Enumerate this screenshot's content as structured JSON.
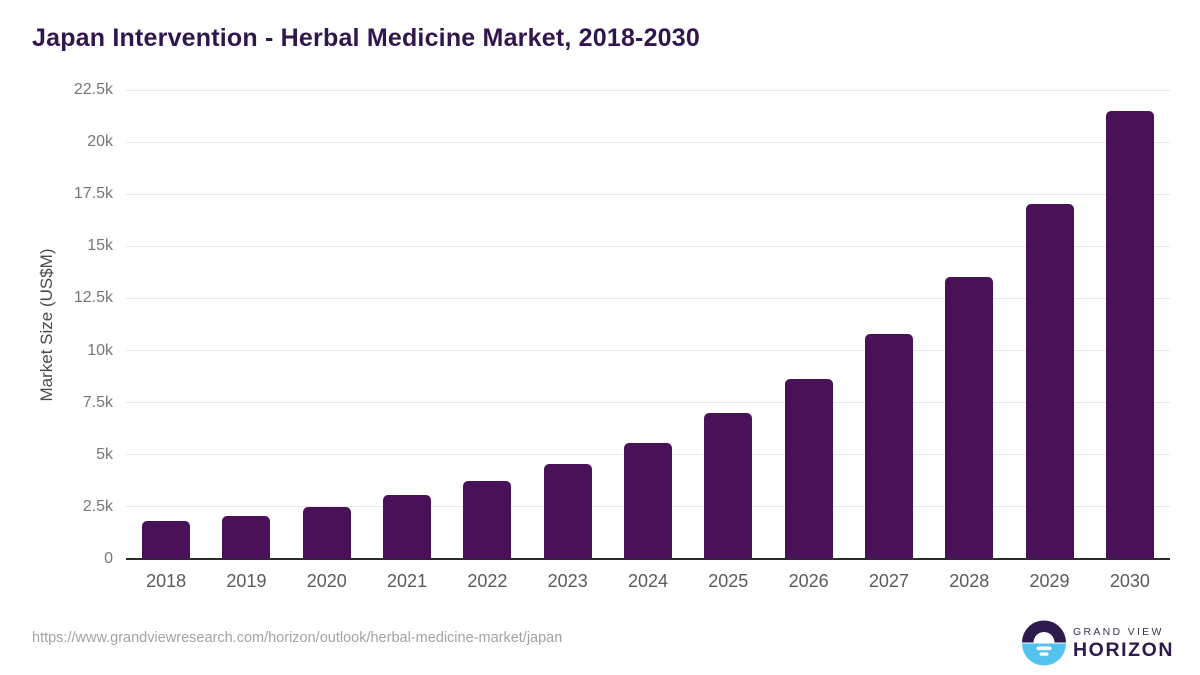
{
  "page": {
    "title": "Japan Intervention - Herbal Medicine Market, 2018-2030",
    "source_url": "https://www.grandviewresearch.com/horizon/outlook/herbal-medicine-market/japan"
  },
  "logo": {
    "line1": "GRAND VIEW",
    "line2": "HORIZON"
  },
  "colors": {
    "bar": "#491157",
    "title": "#31164e",
    "gridline": "#e8e8e8",
    "axis_line": "#2b2b2b",
    "y_tick": "#767676",
    "x_tick": "#5b5b5b",
    "axis_title": "#4a4a4a",
    "url_text": "#a3a3a3",
    "logo_purple": "#2d1b4e",
    "logo_blue": "#55c3f0"
  },
  "chart_data": {
    "type": "bar",
    "title": "Japan Intervention - Herbal Medicine Market, 2018-2030",
    "categories": [
      "2018",
      "2019",
      "2020",
      "2021",
      "2022",
      "2023",
      "2024",
      "2025",
      "2026",
      "2027",
      "2028",
      "2029",
      "2030"
    ],
    "values": [
      1800,
      2050,
      2500,
      3050,
      3750,
      4550,
      5550,
      7000,
      8650,
      10800,
      13550,
      17050,
      21500
    ],
    "xlabel": "",
    "ylabel": "Market Size (US$M)",
    "ylim": [
      0,
      22500
    ],
    "ytick_step": 2500,
    "ytick_labels": [
      "0",
      "2.5k",
      "5k",
      "7.5k",
      "10k",
      "12.5k",
      "15k",
      "17.5k",
      "20k",
      "22.5k"
    ],
    "grid": "horizontal",
    "legend": "none",
    "bar_color": "#491157",
    "unit": "US$M"
  }
}
